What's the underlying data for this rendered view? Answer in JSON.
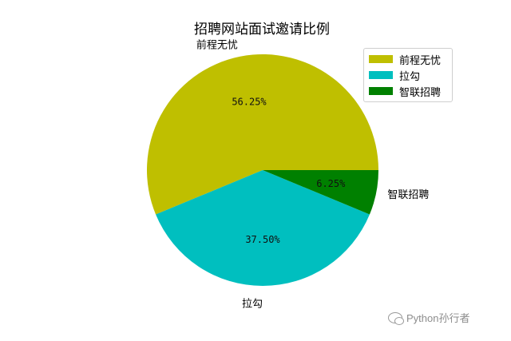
{
  "chart_data": {
    "type": "pie",
    "title": "招聘网站面试邀请比例",
    "slices": [
      {
        "label": "前程无忧",
        "value": 56.25,
        "pct_label": "56.25%",
        "color": "#bfbf00"
      },
      {
        "label": "拉勾",
        "value": 37.5,
        "pct_label": "37.50%",
        "color": "#00bfbf"
      },
      {
        "label": "智联招聘",
        "value": 6.25,
        "pct_label": "6.25%",
        "color": "#008000"
      }
    ],
    "start_angle_deg": 0,
    "direction": "counterclockwise",
    "legend_position": "top-right"
  },
  "watermark": {
    "text": "Python孙行者",
    "icon": "wechat-icon"
  }
}
